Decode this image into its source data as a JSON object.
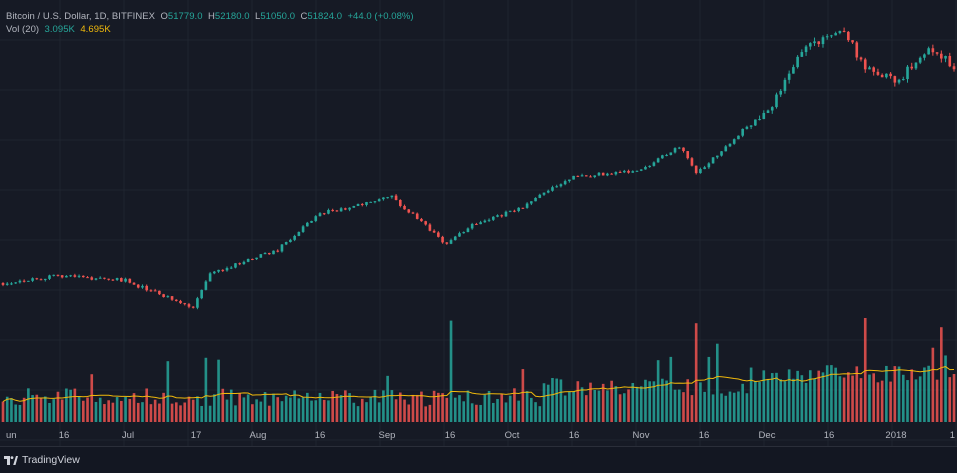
{
  "legend": {
    "symbol": "Bitcoin / U.S. Dollar, 1D, BITFINEX",
    "open_label": "O",
    "open": "51779.0",
    "high_label": "H",
    "high": "52180.0",
    "low_label": "L",
    "low": "51050.0",
    "close_label": "C",
    "close": "51824.0",
    "change": "+44.0 (+0.08%)",
    "vol_label": "Vol (20)",
    "vol_value": "3.095K",
    "vol_avg": "4.695K"
  },
  "footer": {
    "brand": "TradingView",
    "logo": "tradingview-logo-icon"
  },
  "colors": {
    "up": "#26a69a",
    "down": "#ef5350",
    "grid": "#1f2430",
    "vol_ma": "#f0b90b",
    "background": "#161a25"
  },
  "chart_data": {
    "type": "candlestick",
    "x_tick_labels": [
      "un",
      "16",
      "Jul",
      "17",
      "Aug",
      "16",
      "Sep",
      "16",
      "Oct",
      "16",
      "Nov",
      "16",
      "Dec",
      "16",
      "2018",
      "1"
    ],
    "x_range": [
      "2017-06-01",
      "2018-01-12"
    ],
    "price_anchors": [
      {
        "date": "2017-06-01",
        "price": 2400
      },
      {
        "date": "2017-06-15",
        "price": 2550
      },
      {
        "date": "2017-06-30",
        "price": 2450
      },
      {
        "date": "2017-07-16",
        "price": 1950
      },
      {
        "date": "2017-07-20",
        "price": 2600
      },
      {
        "date": "2017-08-05",
        "price": 3150
      },
      {
        "date": "2017-08-15",
        "price": 4250
      },
      {
        "date": "2017-09-01",
        "price": 4850
      },
      {
        "date": "2017-09-14",
        "price": 3300
      },
      {
        "date": "2017-09-20",
        "price": 3900
      },
      {
        "date": "2017-10-01",
        "price": 4400
      },
      {
        "date": "2017-10-13",
        "price": 5700
      },
      {
        "date": "2017-10-30",
        "price": 6100
      },
      {
        "date": "2017-11-08",
        "price": 7400
      },
      {
        "date": "2017-11-12",
        "price": 5900
      },
      {
        "date": "2017-11-26",
        "price": 9300
      },
      {
        "date": "2017-12-01",
        "price": 10900
      },
      {
        "date": "2017-12-07",
        "price": 16500
      },
      {
        "date": "2017-12-17",
        "price": 19300
      },
      {
        "date": "2017-12-22",
        "price": 13800
      },
      {
        "date": "2017-12-30",
        "price": 12600
      },
      {
        "date": "2018-01-06",
        "price": 17000
      },
      {
        "date": "2018-01-12",
        "price": 14000
      }
    ],
    "volume_spikes_k": [
      {
        "date": "2017-09-15",
        "volume": 39
      },
      {
        "date": "2017-11-12",
        "volume": 38
      },
      {
        "date": "2017-12-22",
        "volume": 40
      }
    ],
    "volume_ma_period": 20,
    "grid": true
  }
}
